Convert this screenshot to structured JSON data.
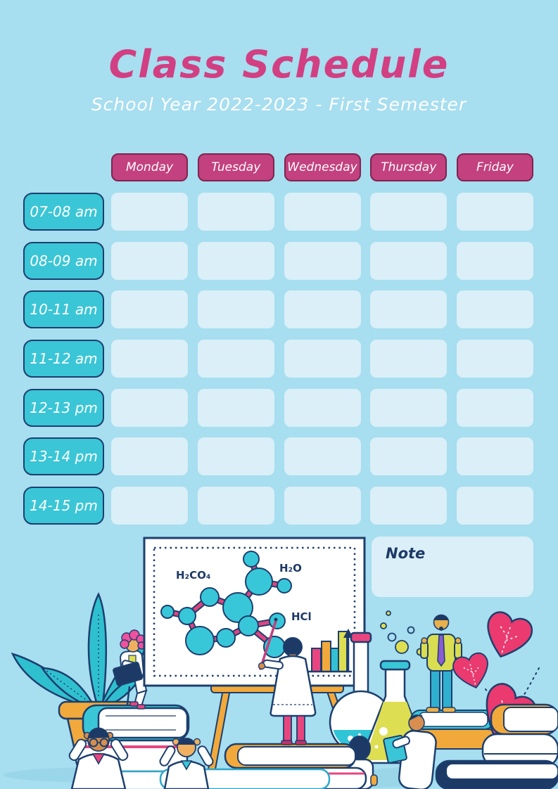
{
  "page": {
    "title": "Class Schedule",
    "subtitle": "School Year 2022-2023 - First Semester"
  },
  "schedule": {
    "days": [
      "Monday",
      "Tuesday",
      "Wednesday",
      "Thursday",
      "Friday"
    ],
    "times": [
      "07-08 am",
      "08-09 am",
      "10-11 am",
      "11-12 am",
      "12-13 pm",
      "13-14 pm",
      "14-15 pm"
    ]
  },
  "note": {
    "label": "Note"
  },
  "whiteboard": {
    "formula_1": "H₂CO₄",
    "formula_2": "H₂O",
    "formula_3": "HCl"
  },
  "colors": {
    "background": "#a7def0",
    "cell": "#daeff7",
    "header_pink": "#c3417e",
    "title_pink": "#d23f82",
    "teal": "#3ac6d6",
    "navy": "#1d3f6e",
    "orange": "#f2a93b",
    "yellow": "#dede52",
    "bright_pink": "#e8457f"
  }
}
